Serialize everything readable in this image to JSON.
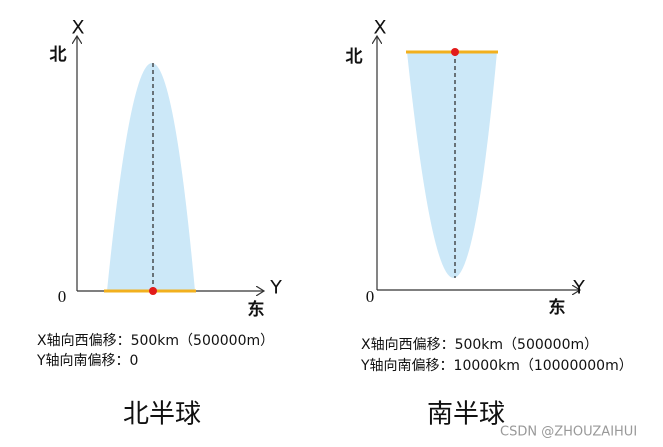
{
  "panels": [
    {
      "x_label": "X",
      "north": "北",
      "origin": "0",
      "y_label": "Y",
      "east": "东",
      "notes": [
        "X轴向西偏移：500km（500000m）",
        "Y轴向南偏移：0"
      ],
      "caption": "北半球"
    },
    {
      "x_label": "X",
      "north": "北",
      "origin": "0",
      "y_label": "Y",
      "east": "东",
      "notes": [
        "X轴向西偏移：500km（500000m）",
        "Y轴向南偏移：10000km（10000000m）"
      ],
      "caption": "南半球"
    }
  ],
  "watermark": "CSDN @ZHOUZAIHUI"
}
